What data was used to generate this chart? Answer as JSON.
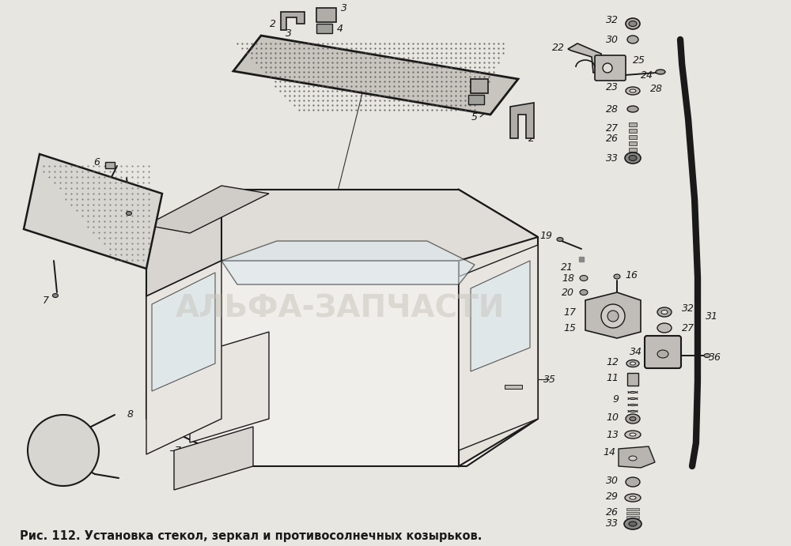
{
  "caption": "Рис. 112. Установка стекол, зеркал и противосолнечных козырьков.",
  "caption_fontsize": 10.5,
  "caption_fontweight": "bold",
  "background_color": "#e8e6e0",
  "fig_width": 10.0,
  "fig_height": 6.91,
  "watermark": "АЛЬФА-ЗАПЧАСТИ",
  "watermark_color": "#c8c4bc",
  "watermark_alpha": 0.5,
  "watermark_fontsize": 28,
  "line_color": "#1a1a1a",
  "text_color": "#1a1a1a",
  "lw_main": 1.4,
  "lw_thin": 0.8,
  "lw_thick": 2.5
}
